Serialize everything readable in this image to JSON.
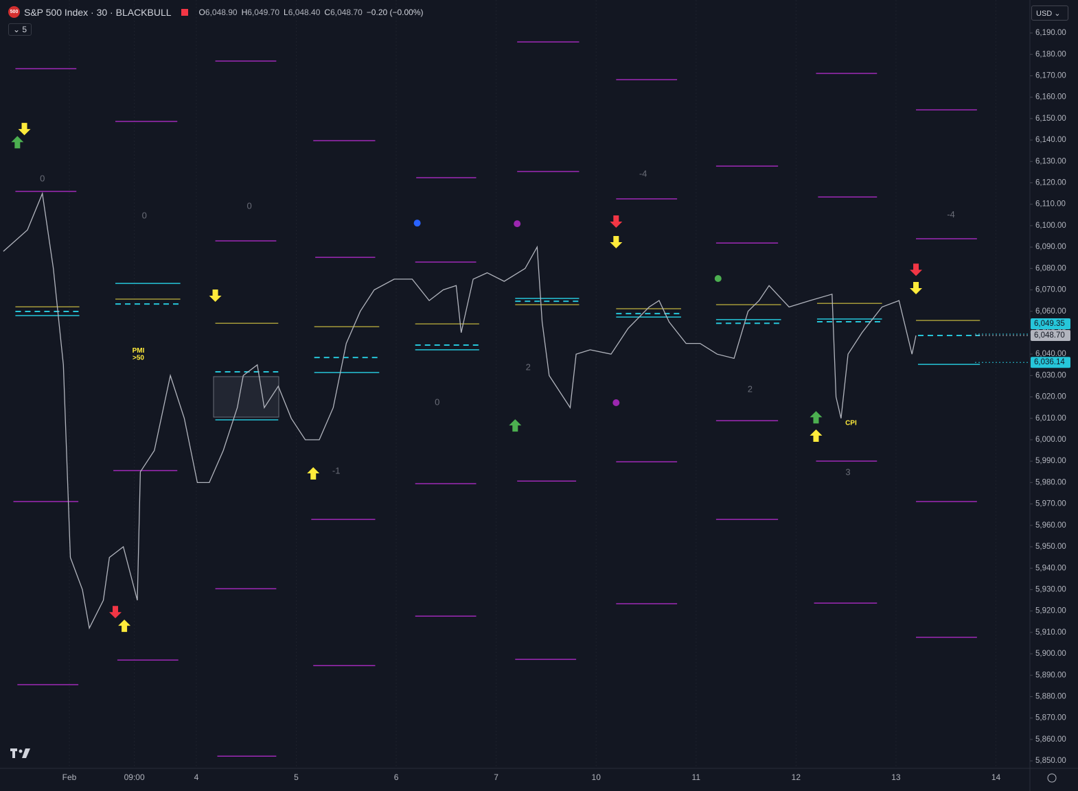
{
  "chart_data": {
    "type": "line",
    "title": "S&P 500 Index · 30 · BLACKBULL",
    "symbol_badge": "500",
    "ohlc": [
      "O",
      "6,048.90",
      "H",
      "6,049.70",
      "L",
      "6,048.40",
      "C",
      "6,048.70",
      "−0.20 (−0.00%)"
    ],
    "indicator_count": "5",
    "currency": "USD",
    "color": "#b2b5be",
    "xlim": [
      2.036,
      12.34
    ],
    "ylim": [
      5846.5,
      6205.4
    ],
    "xticks": [
      {
        "value": 2.73,
        "label": "Feb"
      },
      {
        "value": 3.38,
        "label": "09:00"
      },
      4,
      5,
      6,
      7,
      {
        "value": 8,
        "label": "10"
      },
      {
        "value": 9,
        "label": "11"
      },
      {
        "value": 10,
        "label": "12"
      },
      {
        "value": 11,
        "label": "13"
      },
      {
        "value": 12,
        "label": "14"
      }
    ],
    "yticks": [
      {
        "value": 5850,
        "label": "5,850.00"
      },
      {
        "value": 5860,
        "label": "5,860.00"
      },
      {
        "value": 5870,
        "label": "5,870.00"
      },
      {
        "value": 5880,
        "label": "5,880.00"
      },
      {
        "value": 5890,
        "label": "5,890.00"
      },
      {
        "value": 5900,
        "label": "5,900.00"
      },
      {
        "value": 5910,
        "label": "5,910.00"
      },
      {
        "value": 5920,
        "label": "5,920.00"
      },
      {
        "value": 5930,
        "label": "5,930.00"
      },
      {
        "value": 5940,
        "label": "5,940.00"
      },
      {
        "value": 5950,
        "label": "5,950.00"
      },
      {
        "value": 5960,
        "label": "5,960.00"
      },
      {
        "value": 5970,
        "label": "5,970.00"
      },
      {
        "value": 5980,
        "label": "5,980.00"
      },
      {
        "value": 5990,
        "label": "5,990.00"
      },
      {
        "value": 6000,
        "label": "6,000.00"
      },
      {
        "value": 6010,
        "label": "6,010.00"
      },
      {
        "value": 6020,
        "label": "6,020.00"
      },
      {
        "value": 6030,
        "label": "6,030.00"
      },
      {
        "value": 6040,
        "label": "6,040.00"
      },
      {
        "value": 6050,
        "label": "6,050.00"
      },
      {
        "value": 6060,
        "label": "6,060.00"
      },
      {
        "value": 6070,
        "label": "6,070.00"
      },
      {
        "value": 6080,
        "label": "6,080.00"
      },
      {
        "value": 6090,
        "label": "6,090.00"
      },
      {
        "value": 6100,
        "label": "6,100.00"
      },
      {
        "value": 6110,
        "label": "6,110.00"
      },
      {
        "value": 6120,
        "label": "6,120.00"
      },
      {
        "value": 6130,
        "label": "6,130.00"
      },
      {
        "value": 6140,
        "label": "6,140.00"
      },
      {
        "value": 6150,
        "label": "6,150.00"
      },
      {
        "value": 6160,
        "label": "6,160.00"
      },
      {
        "value": 6170,
        "label": "6,170.00"
      },
      {
        "value": 6180,
        "label": "6,180.00"
      },
      {
        "value": 6190,
        "label": "6,190.00"
      }
    ],
    "grid": true,
    "x": [
      2.07,
      2.31,
      2.46,
      2.57,
      2.67,
      2.74,
      2.86,
      2.93,
      3.07,
      3.13,
      3.27,
      3.41,
      3.44,
      3.58,
      3.74,
      3.88,
      4.01,
      4.13,
      4.27,
      4.41,
      4.47,
      4.61,
      4.68,
      4.82,
      4.95,
      5.09,
      5.23,
      5.37,
      5.5,
      5.64,
      5.78,
      5.98,
      6.16,
      6.33,
      6.47,
      6.6,
      6.65,
      6.77,
      6.91,
      7.08,
      7.29,
      7.41,
      7.46,
      7.53,
      7.67,
      7.74,
      7.8,
      7.94,
      8.15,
      8.32,
      8.53,
      8.63,
      8.73,
      8.9,
      9.04,
      9.21,
      9.38,
      9.52,
      9.63,
      9.73,
      9.93,
      10.14,
      10.36,
      10.4,
      10.45,
      10.52,
      10.66,
      10.86,
      11.03,
      11.16,
      11.2
    ],
    "values": [
      6088,
      6098,
      6115,
      6080,
      6035,
      5945,
      5930,
      5912,
      5925,
      5945,
      5950,
      5925,
      5985,
      5995,
      6030,
      6010,
      5980,
      5980,
      5995,
      6015,
      6030,
      6035,
      6015,
      6025,
      6010,
      6000,
      6000,
      6015,
      6045,
      6060,
      6070,
      6075,
      6075,
      6065,
      6070,
      6072,
      6050,
      6075,
      6078,
      6074,
      6080,
      6090,
      6055,
      6030,
      6020,
      6015,
      6040,
      6042,
      6040,
      6052,
      6062,
      6065,
      6055,
      6045,
      6045,
      6040,
      6038,
      6060,
      6065,
      6072,
      6062,
      6065,
      6068,
      6020,
      6010,
      6040,
      6050,
      6062,
      6065,
      6040,
      6048.7
    ],
    "levels": [
      {
        "color": "#a02ab8",
        "dashed": false,
        "segments": [
          [
            2.19,
            2.8,
            6173.3
          ],
          [
            2.19,
            2.8,
            6116.0
          ],
          [
            2.17,
            2.82,
            5971.1
          ],
          [
            2.21,
            2.82,
            5885.6
          ],
          [
            3.19,
            3.81,
            6148.7
          ],
          [
            3.17,
            3.81,
            5985.6
          ],
          [
            3.21,
            3.82,
            5897.1
          ],
          [
            4.19,
            4.8,
            6176.9
          ],
          [
            4.19,
            4.8,
            6092.9
          ],
          [
            4.19,
            4.8,
            5930.4
          ],
          [
            4.21,
            4.8,
            5852.2
          ],
          [
            5.17,
            5.79,
            6139.7
          ],
          [
            5.19,
            5.79,
            6085.2
          ],
          [
            5.15,
            5.79,
            5962.8
          ],
          [
            5.17,
            5.79,
            5894.5
          ],
          [
            6.2,
            6.8,
            6122.4
          ],
          [
            6.19,
            6.8,
            6083.0
          ],
          [
            6.19,
            6.8,
            5979.5
          ],
          [
            6.19,
            6.8,
            5917.6
          ],
          [
            7.21,
            7.83,
            6185.8
          ],
          [
            7.21,
            7.83,
            6125.3
          ],
          [
            7.21,
            7.8,
            5980.7
          ],
          [
            7.19,
            7.8,
            5897.4
          ],
          [
            8.2,
            8.81,
            6168.2
          ],
          [
            8.2,
            8.81,
            6112.5
          ],
          [
            8.2,
            8.81,
            5989.7
          ],
          [
            8.2,
            8.81,
            5923.4
          ],
          [
            9.2,
            9.82,
            6127.8
          ],
          [
            9.2,
            9.82,
            6091.9
          ],
          [
            9.2,
            9.82,
            6008.9
          ],
          [
            9.2,
            9.82,
            5962.8
          ],
          [
            10.2,
            10.81,
            6171.1
          ],
          [
            10.22,
            10.81,
            6113.4
          ],
          [
            10.2,
            10.81,
            5990.0
          ],
          [
            10.18,
            10.81,
            5923.7
          ],
          [
            11.2,
            11.81,
            6154.1
          ],
          [
            11.2,
            11.81,
            6093.9
          ],
          [
            11.2,
            11.81,
            5971.1
          ],
          [
            11.2,
            11.81,
            5907.7
          ]
        ]
      },
      {
        "color": "#a59a3a",
        "dashed": false,
        "segments": [
          [
            2.19,
            2.83,
            6062.1
          ],
          [
            3.19,
            3.84,
            6065.7
          ],
          [
            4.19,
            4.82,
            6054.4
          ],
          [
            5.18,
            5.83,
            6052.8
          ],
          [
            6.19,
            6.83,
            6054.1
          ],
          [
            7.19,
            7.83,
            6063.1
          ],
          [
            8.2,
            8.85,
            6061.2
          ],
          [
            9.2,
            9.85,
            6063.1
          ],
          [
            10.21,
            10.86,
            6063.7
          ],
          [
            11.2,
            11.84,
            6055.7
          ]
        ]
      },
      {
        "color": "#26c6da",
        "dashed": false,
        "segments": [
          [
            2.19,
            2.83,
            6058.0
          ],
          [
            3.19,
            3.84,
            6073.0
          ],
          [
            4.19,
            4.82,
            6009.3
          ],
          [
            5.18,
            5.83,
            6031.4
          ],
          [
            6.19,
            6.83,
            6042.0
          ],
          [
            7.19,
            7.83,
            6066.0
          ],
          [
            8.2,
            8.85,
            6057.3
          ],
          [
            9.2,
            9.85,
            6056.1
          ],
          [
            10.21,
            10.86,
            6056.4
          ],
          [
            11.22,
            11.84,
            6035.2
          ]
        ]
      },
      {
        "color": "#26c6da",
        "dashed": true,
        "segments": [
          [
            2.19,
            2.83,
            6059.9
          ],
          [
            3.19,
            3.84,
            6063.4
          ],
          [
            4.19,
            4.82,
            6031.7
          ],
          [
            5.18,
            5.83,
            6038.4
          ],
          [
            6.19,
            6.83,
            6044.2
          ],
          [
            7.19,
            7.83,
            6064.7
          ],
          [
            8.2,
            8.85,
            6058.9
          ],
          [
            9.2,
            9.85,
            6054.4
          ],
          [
            10.21,
            10.86,
            6055.1
          ],
          [
            11.22,
            11.84,
            6048.7
          ]
        ]
      }
    ],
    "markers": [
      {
        "shape": "arrow-up",
        "color": "#4caf50",
        "x": 2.21,
        "y": 6139.0
      },
      {
        "shape": "arrow-down",
        "color": "#ffeb3b",
        "x": 2.28,
        "y": 6145.1
      },
      {
        "shape": "arrow-down",
        "color": "#ffeb3b",
        "x": 4.19,
        "y": 6067.3
      },
      {
        "shape": "arrow-down",
        "color": "#f23645",
        "x": 3.19,
        "y": 5919.5
      },
      {
        "shape": "arrow-up",
        "color": "#ffeb3b",
        "x": 3.28,
        "y": 5913.1
      },
      {
        "shape": "arrow-up",
        "color": "#ffeb3b",
        "x": 5.17,
        "y": 5984.3
      },
      {
        "shape": "arrow-up",
        "color": "#4caf50",
        "x": 7.19,
        "y": 6006.7
      },
      {
        "shape": "arrow-down",
        "color": "#f23645",
        "x": 8.2,
        "y": 6101.9
      },
      {
        "shape": "arrow-down",
        "color": "#ffeb3b",
        "x": 8.2,
        "y": 6092.3
      },
      {
        "shape": "arrow-up",
        "color": "#4caf50",
        "x": 10.2,
        "y": 6010.5
      },
      {
        "shape": "arrow-up",
        "color": "#ffeb3b",
        "x": 10.2,
        "y": 6001.9
      },
      {
        "shape": "arrow-down",
        "color": "#f23645",
        "x": 11.2,
        "y": 6079.4
      },
      {
        "shape": "arrow-down",
        "color": "#ffeb3b",
        "x": 11.2,
        "y": 6070.8
      },
      {
        "shape": "dot",
        "color": "#2962ff",
        "x": 6.21,
        "y": 6101.2
      },
      {
        "shape": "dot",
        "color": "#9c27b0",
        "x": 7.21,
        "y": 6100.9
      },
      {
        "shape": "dot",
        "color": "#9c27b0",
        "x": 8.2,
        "y": 6017.3
      },
      {
        "shape": "dot",
        "color": "#4caf50",
        "x": 9.22,
        "y": 6075.3
      }
    ],
    "annotations": [
      {
        "text": "0",
        "color": "#6a6d78",
        "x": 2.46,
        "y": 6121.7
      },
      {
        "text": "0",
        "color": "#6a6d78",
        "x": 3.48,
        "y": 6104.4
      },
      {
        "text": "0",
        "color": "#6a6d78",
        "x": 4.53,
        "y": 6108.9
      },
      {
        "text": "-1",
        "color": "#6a6d78",
        "x": 5.4,
        "y": 5985.2
      },
      {
        "text": "0",
        "color": "#6a6d78",
        "x": 6.41,
        "y": 6017.3
      },
      {
        "text": "2",
        "color": "#6a6d78",
        "x": 7.32,
        "y": 6033.6
      },
      {
        "text": "-4",
        "color": "#6a6d78",
        "x": 8.47,
        "y": 6124.0
      },
      {
        "text": "2",
        "color": "#6a6d78",
        "x": 9.54,
        "y": 6023.4
      },
      {
        "text": "3",
        "color": "#6a6d78",
        "x": 10.52,
        "y": 5984.6
      },
      {
        "text": "-4",
        "color": "#6a6d78",
        "x": 11.55,
        "y": 6105.0
      },
      {
        "text": "PMI",
        "color": "#ffeb3b",
        "x": 3.42,
        "y": 6041.6
      },
      {
        "text": ">50",
        "color": "#ffeb3b",
        "x": 3.42,
        "y": 6038.1
      },
      {
        "text": "CPI",
        "color": "#ffeb3b",
        "x": 10.55,
        "y": 6007.7
      }
    ],
    "price_labels": [
      {
        "value": 6049.35,
        "label": "6,049.35",
        "color": "#26c6da"
      },
      {
        "value": 6048.7,
        "label": "6,048.70",
        "color": "#b2b5be"
      },
      {
        "value": 6036.14,
        "label": "6,036.14",
        "color": "#26c6da"
      }
    ]
  }
}
